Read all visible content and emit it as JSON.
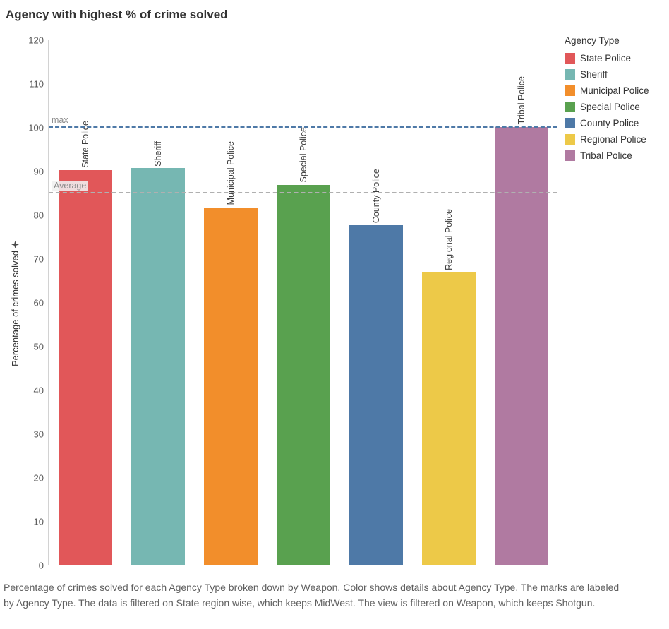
{
  "title": "Agency with highest % of crime solved",
  "chart_data": {
    "type": "bar",
    "title": "Agency with highest % of crime solved",
    "xlabel": "",
    "ylabel": "Percentage of crimes solved",
    "ylim": [
      0,
      120
    ],
    "yticks": [
      0,
      10,
      20,
      30,
      40,
      50,
      60,
      70,
      80,
      90,
      100,
      110,
      120
    ],
    "grid": false,
    "legend_position": "right",
    "legend_title": "Agency Type",
    "categories": [
      "State Police",
      "Sheriff",
      "Municipal Police",
      "Special Police",
      "County Police",
      "Regional Police",
      "Tribal Police"
    ],
    "values": [
      90.3,
      90.7,
      81.8,
      86.9,
      77.7,
      66.9,
      100.2
    ],
    "colors": [
      "#e15759",
      "#76b7b2",
      "#f28e2b",
      "#59a14f",
      "#4e79a7",
      "#edc948",
      "#b07aa1"
    ],
    "bar_labels": [
      "State Police",
      "Sheriff",
      "Municipal Police",
      "Special Police",
      "County Police",
      "Regional Police",
      "Tribal Police"
    ],
    "reference_lines": [
      {
        "id": "max",
        "label": "max",
        "value": 100,
        "color": "#4e79a7"
      },
      {
        "id": "average",
        "label": "Average",
        "value": 84.9,
        "color": "#b0b0b0"
      }
    ]
  },
  "legend": {
    "title": "Agency Type",
    "items": [
      {
        "label": "State Police",
        "color": "#e15759"
      },
      {
        "label": "Sheriff",
        "color": "#76b7b2"
      },
      {
        "label": "Municipal Police",
        "color": "#f28e2b"
      },
      {
        "label": "Special Police",
        "color": "#59a14f"
      },
      {
        "label": "County Police",
        "color": "#4e79a7"
      },
      {
        "label": "Regional Police",
        "color": "#edc948"
      },
      {
        "label": "Tribal Police",
        "color": "#b07aa1"
      }
    ]
  },
  "icons": {
    "pin": "pin-icon"
  },
  "caption": "Percentage of crimes solved for each Agency Type broken down by Weapon.  Color shows details about Agency Type.  The marks are labeled by Agency Type. The data is filtered on State region wise, which keeps MidWest. The view is filtered on Weapon, which keeps Shotgun."
}
